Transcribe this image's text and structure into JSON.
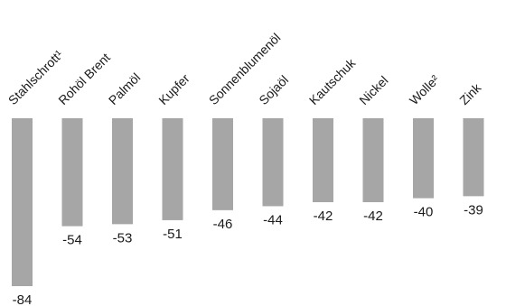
{
  "chart_data": {
    "type": "bar",
    "orientation": "vertical-negative",
    "categories": [
      "Stahlschrott¹",
      "Rohöl Brent",
      "Palmöl",
      "Kupfer",
      "Sonnenblumenöl",
      "Sojaöl",
      "Kautschuk",
      "Nickel",
      "Wolle²",
      "Zink"
    ],
    "values": [
      -84,
      -54,
      -53,
      -51,
      -46,
      -44,
      -42,
      -42,
      -40,
      -39
    ],
    "value_labels": [
      "-84",
      "-54",
      "-53",
      "-51",
      "-46",
      "-44",
      "-42",
      "-42",
      "-40",
      "-39"
    ],
    "title": "",
    "xlabel": "",
    "ylabel": "",
    "ylim": [
      -84,
      0
    ],
    "grid": false,
    "legend": "none",
    "bar_color": "#a6a6a6"
  }
}
